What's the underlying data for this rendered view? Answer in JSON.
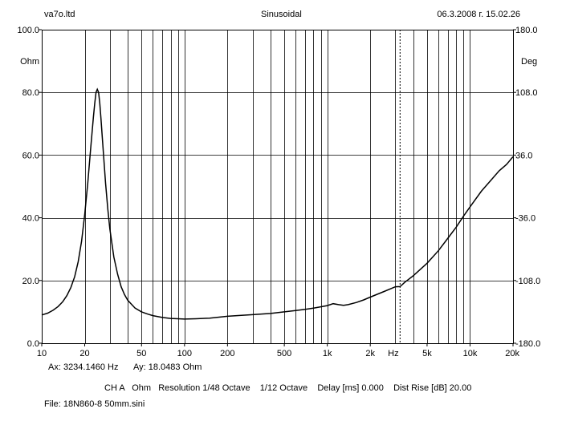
{
  "header": {
    "left": "va7o.ltd",
    "center": "Sinusoidal",
    "right": "06.3.2008 г. 15.02.26"
  },
  "cursor": {
    "ax": "Ax: 3234.1460 Hz",
    "ay": "Ay: 18.0483 Ohm"
  },
  "settings": {
    "line": "CH A   Ohm   Resolution 1/48 Octave    1/12 Octave    Delay [ms] 0.000    Dist Rise [dB] 20.00"
  },
  "file": {
    "label": "File: 18N860-8 50mm.sini"
  },
  "chart_data": {
    "type": "line",
    "x_scale": "log",
    "xlim": [
      10,
      20000
    ],
    "ylim": [
      0,
      100
    ],
    "y2lim": [
      -180,
      180
    ],
    "xlabel": "Hz",
    "ylabel": "Ohm",
    "y2label": "Deg",
    "x_ticks": [
      {
        "value": 10,
        "label": "10"
      },
      {
        "value": 20,
        "label": "20"
      },
      {
        "value": 50,
        "label": "50"
      },
      {
        "value": 100,
        "label": "100"
      },
      {
        "value": 200,
        "label": "200"
      },
      {
        "value": 500,
        "label": "500"
      },
      {
        "value": 1000,
        "label": "1k"
      },
      {
        "value": 2000,
        "label": "2k"
      },
      {
        "value": 5000,
        "label": "5k"
      },
      {
        "value": 10000,
        "label": "10k"
      },
      {
        "value": 20000,
        "label": "20k"
      }
    ],
    "y_ticks": [
      {
        "value": 100,
        "label": "100.0"
      },
      {
        "value": 80,
        "label": "80.0"
      },
      {
        "value": 60,
        "label": "60.0"
      },
      {
        "value": 40,
        "label": "40.0"
      },
      {
        "value": 20,
        "label": "20.0"
      },
      {
        "value": 0,
        "label": "0.0"
      }
    ],
    "y2_ticks": [
      {
        "value": 180,
        "label": "180.0"
      },
      {
        "value": 108,
        "label": "108.0"
      },
      {
        "value": 36,
        "label": "36.0"
      },
      {
        "value": -36,
        "label": "-36.0"
      },
      {
        "value": -108,
        "label": "-108.0"
      },
      {
        "value": -180,
        "label": "-180.0"
      }
    ],
    "grid": true,
    "cursor_x": 3234.146,
    "series": [
      {
        "x": [
          10,
          11,
          12,
          13,
          14,
          15,
          16,
          17,
          18,
          19,
          20,
          21,
          22,
          23,
          23.5,
          24,
          24.5,
          25,
          25.5,
          26,
          26.5,
          27,
          28,
          29,
          30,
          32,
          34,
          36,
          38,
          40,
          45,
          50,
          55,
          60,
          70,
          80,
          90,
          100,
          120,
          150,
          200,
          250,
          300,
          400,
          500,
          600,
          700,
          800,
          900,
          1000,
          1100,
          1200,
          1300,
          1400,
          1600,
          1800,
          2000,
          2500,
          3000,
          3234,
          3500,
          4000,
          5000,
          6000,
          7000,
          8000,
          9000,
          10000,
          12000,
          14000,
          16000,
          18000,
          20000
        ],
        "values": [
          9.0,
          9.6,
          10.5,
          11.7,
          13.2,
          15.2,
          17.8,
          21.2,
          26.0,
          32.5,
          41.0,
          51.0,
          62.0,
          72.0,
          76.5,
          80.0,
          81.0,
          80.0,
          76.5,
          71.5,
          66.0,
          61.0,
          51.0,
          43.0,
          36.5,
          27.5,
          22.0,
          18.0,
          15.5,
          13.7,
          11.2,
          10.0,
          9.3,
          8.8,
          8.2,
          7.9,
          7.8,
          7.7,
          7.8,
          8.0,
          8.6,
          8.9,
          9.1,
          9.5,
          10.0,
          10.4,
          10.8,
          11.2,
          11.6,
          12.0,
          12.6,
          12.3,
          12.1,
          12.3,
          13.0,
          13.8,
          14.7,
          16.5,
          18.0,
          18.05,
          19.5,
          21.5,
          25.5,
          29.5,
          33.5,
          37.0,
          40.5,
          43.5,
          48.5,
          52.0,
          55.0,
          57.0,
          59.5
        ]
      }
    ]
  }
}
